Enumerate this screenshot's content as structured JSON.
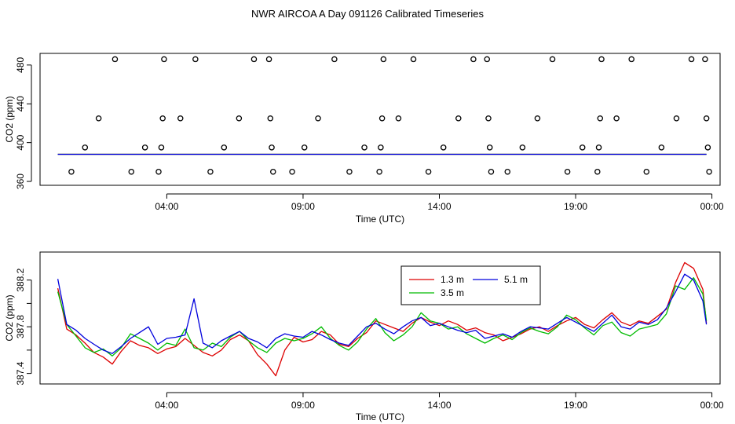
{
  "figure_title": "NWR AIRCOA A  Day 091126  Calibrated Timeseries",
  "chart_data": [
    {
      "type": "scatter",
      "title": "",
      "xlabel": "Time (UTC)",
      "ylabel": "CO2 (ppm)",
      "x_tick_labels": [
        "04:00",
        "09:00",
        "14:00",
        "19:00",
        "00:00"
      ],
      "x_tick_hours": [
        4,
        9,
        14,
        19,
        24
      ],
      "xlim_hours": [
        -0.65,
        24.3
      ],
      "ylim": [
        356,
        492
      ],
      "y_ticks": [
        360,
        400,
        440,
        480
      ],
      "points_hours": [
        {
          "x": 0.5,
          "y": 370
        },
        {
          "x": 1.0,
          "y": 395
        },
        {
          "x": 1.5,
          "y": 425
        },
        {
          "x": 2.1,
          "y": 486
        },
        {
          "x": 2.7,
          "y": 370
        },
        {
          "x": 3.2,
          "y": 395
        },
        {
          "x": 3.7,
          "y": 370
        },
        {
          "x": 3.8,
          "y": 395
        },
        {
          "x": 3.85,
          "y": 425
        },
        {
          "x": 3.9,
          "y": 486
        },
        {
          "x": 4.5,
          "y": 425
        },
        {
          "x": 5.05,
          "y": 486
        },
        {
          "x": 5.6,
          "y": 370
        },
        {
          "x": 6.1,
          "y": 395
        },
        {
          "x": 6.65,
          "y": 425
        },
        {
          "x": 7.2,
          "y": 486
        },
        {
          "x": 7.75,
          "y": 486
        },
        {
          "x": 7.8,
          "y": 425
        },
        {
          "x": 7.85,
          "y": 395
        },
        {
          "x": 7.9,
          "y": 370
        },
        {
          "x": 8.6,
          "y": 370
        },
        {
          "x": 9.05,
          "y": 395
        },
        {
          "x": 9.55,
          "y": 425
        },
        {
          "x": 10.15,
          "y": 486
        },
        {
          "x": 10.7,
          "y": 370
        },
        {
          "x": 11.25,
          "y": 395
        },
        {
          "x": 11.8,
          "y": 370
        },
        {
          "x": 11.85,
          "y": 395
        },
        {
          "x": 11.9,
          "y": 425
        },
        {
          "x": 11.95,
          "y": 486
        },
        {
          "x": 12.5,
          "y": 425
        },
        {
          "x": 13.05,
          "y": 486
        },
        {
          "x": 13.6,
          "y": 370
        },
        {
          "x": 14.15,
          "y": 395
        },
        {
          "x": 14.7,
          "y": 425
        },
        {
          "x": 15.25,
          "y": 486
        },
        {
          "x": 15.75,
          "y": 486
        },
        {
          "x": 15.8,
          "y": 425
        },
        {
          "x": 15.85,
          "y": 395
        },
        {
          "x": 15.9,
          "y": 370
        },
        {
          "x": 16.5,
          "y": 370
        },
        {
          "x": 17.05,
          "y": 395
        },
        {
          "x": 17.6,
          "y": 425
        },
        {
          "x": 18.15,
          "y": 486
        },
        {
          "x": 18.7,
          "y": 370
        },
        {
          "x": 19.25,
          "y": 395
        },
        {
          "x": 19.8,
          "y": 370
        },
        {
          "x": 19.85,
          "y": 395
        },
        {
          "x": 19.9,
          "y": 425
        },
        {
          "x": 19.95,
          "y": 486
        },
        {
          "x": 20.5,
          "y": 425
        },
        {
          "x": 21.05,
          "y": 486
        },
        {
          "x": 21.6,
          "y": 370
        },
        {
          "x": 22.15,
          "y": 395
        },
        {
          "x": 22.7,
          "y": 425
        },
        {
          "x": 23.25,
          "y": 486
        },
        {
          "x": 23.75,
          "y": 486
        },
        {
          "x": 23.8,
          "y": 425
        },
        {
          "x": 23.85,
          "y": 395
        },
        {
          "x": 23.9,
          "y": 370
        }
      ],
      "baseline_series": [
        {
          "name": "1.3 m",
          "color": "#dd0000",
          "value": 388
        },
        {
          "name": "3.5 m",
          "color": "#00bb00",
          "value": 388
        },
        {
          "name": "5.1 m",
          "color": "#0000dd",
          "value": 388
        }
      ],
      "baseline_x_range_hours": [
        0.0,
        23.8
      ]
    },
    {
      "type": "line",
      "title": "",
      "xlabel": "Time (UTC)",
      "ylabel": "CO2 (ppm)",
      "x_tick_labels": [
        "04:00",
        "09:00",
        "14:00",
        "19:00",
        "00:00"
      ],
      "x_tick_hours": [
        4,
        9,
        14,
        19,
        24
      ],
      "xlim_hours": [
        -0.65,
        24.3
      ],
      "ylim": [
        387.31,
        388.44
      ],
      "y_ticks": [
        387.4,
        387.6,
        387.8,
        388.0,
        388.2
      ],
      "y_tick_labels": [
        "387.4",
        "",
        "387.8",
        "",
        "388.2"
      ],
      "legend": {
        "position": "top-center",
        "entries": [
          "1.3 m",
          "3.5 m",
          "5.1 m"
        ]
      },
      "series": [
        {
          "name": "1.3 m",
          "color": "#dd0000",
          "x_hours": [
            0.0,
            0.33,
            0.67,
            1.0,
            1.33,
            1.67,
            2.0,
            2.33,
            2.67,
            3.0,
            3.33,
            3.67,
            4.0,
            4.33,
            4.67,
            5.0,
            5.33,
            5.67,
            6.0,
            6.33,
            6.67,
            7.0,
            7.33,
            7.67,
            8.0,
            8.33,
            8.67,
            9.0,
            9.33,
            9.67,
            10.0,
            10.33,
            10.67,
            11.0,
            11.33,
            11.67,
            12.0,
            12.33,
            12.67,
            13.0,
            13.33,
            13.67,
            14.0,
            14.33,
            14.67,
            15.0,
            15.33,
            15.67,
            16.0,
            16.33,
            16.67,
            17.0,
            17.33,
            17.67,
            18.0,
            18.33,
            18.67,
            19.0,
            19.33,
            19.67,
            20.0,
            20.33,
            20.67,
            21.0,
            21.33,
            21.67,
            22.0,
            22.33,
            22.67,
            23.0,
            23.33,
            23.67,
            23.8
          ],
          "values": [
            388.13,
            387.78,
            387.73,
            387.66,
            387.58,
            387.54,
            387.48,
            387.59,
            387.68,
            387.64,
            387.62,
            387.57,
            387.61,
            387.63,
            387.7,
            387.64,
            387.58,
            387.55,
            387.6,
            387.69,
            387.73,
            387.68,
            387.56,
            387.48,
            387.38,
            387.6,
            387.71,
            387.67,
            387.69,
            387.76,
            387.73,
            387.65,
            387.63,
            387.7,
            387.75,
            387.85,
            387.82,
            387.79,
            387.76,
            387.83,
            387.88,
            387.84,
            387.81,
            387.85,
            387.82,
            387.77,
            387.79,
            387.75,
            387.73,
            387.68,
            387.71,
            387.74,
            387.78,
            387.8,
            387.76,
            387.81,
            387.85,
            387.88,
            387.82,
            387.79,
            387.86,
            387.92,
            387.84,
            387.81,
            387.85,
            387.83,
            387.89,
            387.95,
            388.18,
            388.35,
            388.3,
            388.12,
            387.83
          ]
        },
        {
          "name": "3.5 m",
          "color": "#00bb00",
          "x_hours": [
            0.0,
            0.33,
            0.67,
            1.0,
            1.33,
            1.67,
            2.0,
            2.33,
            2.67,
            3.0,
            3.33,
            3.67,
            4.0,
            4.33,
            4.67,
            5.0,
            5.33,
            5.67,
            6.0,
            6.33,
            6.67,
            7.0,
            7.33,
            7.67,
            8.0,
            8.33,
            8.67,
            9.0,
            9.33,
            9.67,
            10.0,
            10.33,
            10.67,
            11.0,
            11.33,
            11.67,
            12.0,
            12.33,
            12.67,
            13.0,
            13.33,
            13.67,
            14.0,
            14.33,
            14.67,
            15.0,
            15.33,
            15.67,
            16.0,
            16.33,
            16.67,
            17.0,
            17.33,
            17.67,
            18.0,
            18.33,
            18.67,
            19.0,
            19.33,
            19.67,
            20.0,
            20.33,
            20.67,
            21.0,
            21.33,
            21.67,
            22.0,
            22.33,
            22.67,
            23.0,
            23.33,
            23.67,
            23.8
          ],
          "values": [
            388.1,
            387.82,
            387.72,
            387.62,
            387.58,
            387.61,
            387.55,
            387.62,
            387.74,
            387.7,
            387.66,
            387.6,
            387.66,
            387.64,
            387.78,
            387.62,
            387.6,
            387.66,
            387.63,
            387.71,
            387.76,
            387.68,
            387.62,
            387.58,
            387.66,
            387.7,
            387.68,
            387.7,
            387.74,
            387.8,
            387.7,
            387.64,
            387.6,
            387.67,
            387.78,
            387.87,
            387.75,
            387.68,
            387.73,
            387.8,
            387.92,
            387.85,
            387.83,
            387.78,
            387.8,
            387.74,
            387.7,
            387.66,
            387.7,
            387.73,
            387.69,
            387.75,
            387.79,
            387.76,
            387.74,
            387.8,
            387.9,
            387.86,
            387.79,
            387.73,
            387.81,
            387.84,
            387.75,
            387.72,
            387.78,
            387.8,
            387.82,
            387.91,
            388.15,
            388.12,
            388.22,
            388.08,
            387.85
          ]
        },
        {
          "name": "5.1 m",
          "color": "#0000dd",
          "x_hours": [
            0.0,
            0.33,
            0.67,
            1.0,
            1.33,
            1.67,
            2.0,
            2.33,
            2.67,
            3.0,
            3.33,
            3.67,
            4.0,
            4.33,
            4.67,
            5.0,
            5.33,
            5.67,
            6.0,
            6.33,
            6.67,
            7.0,
            7.33,
            7.67,
            8.0,
            8.33,
            8.67,
            9.0,
            9.33,
            9.67,
            10.0,
            10.33,
            10.67,
            11.0,
            11.33,
            11.67,
            12.0,
            12.33,
            12.67,
            13.0,
            13.33,
            13.67,
            14.0,
            14.33,
            14.67,
            15.0,
            15.33,
            15.67,
            16.0,
            16.33,
            16.67,
            17.0,
            17.33,
            17.67,
            18.0,
            18.33,
            18.67,
            19.0,
            19.33,
            19.67,
            20.0,
            20.33,
            20.67,
            21.0,
            21.33,
            21.67,
            22.0,
            22.33,
            22.67,
            23.0,
            23.33,
            23.67,
            23.8
          ],
          "values": [
            388.21,
            387.82,
            387.77,
            387.7,
            387.65,
            387.6,
            387.57,
            387.63,
            387.7,
            387.75,
            387.8,
            387.65,
            387.7,
            387.71,
            387.73,
            388.04,
            387.66,
            387.62,
            387.68,
            387.72,
            387.76,
            387.7,
            387.67,
            387.62,
            387.7,
            387.74,
            387.72,
            387.71,
            387.76,
            387.73,
            387.69,
            387.66,
            387.64,
            387.72,
            387.8,
            387.83,
            387.78,
            387.74,
            387.8,
            387.85,
            387.88,
            387.81,
            387.83,
            387.8,
            387.77,
            387.75,
            387.77,
            387.7,
            387.72,
            387.74,
            387.71,
            387.76,
            387.8,
            387.79,
            387.78,
            387.83,
            387.88,
            387.84,
            387.8,
            387.76,
            387.83,
            387.9,
            387.8,
            387.78,
            387.84,
            387.82,
            387.86,
            387.96,
            388.1,
            388.25,
            388.2,
            388.02,
            387.82
          ]
        }
      ]
    }
  ]
}
